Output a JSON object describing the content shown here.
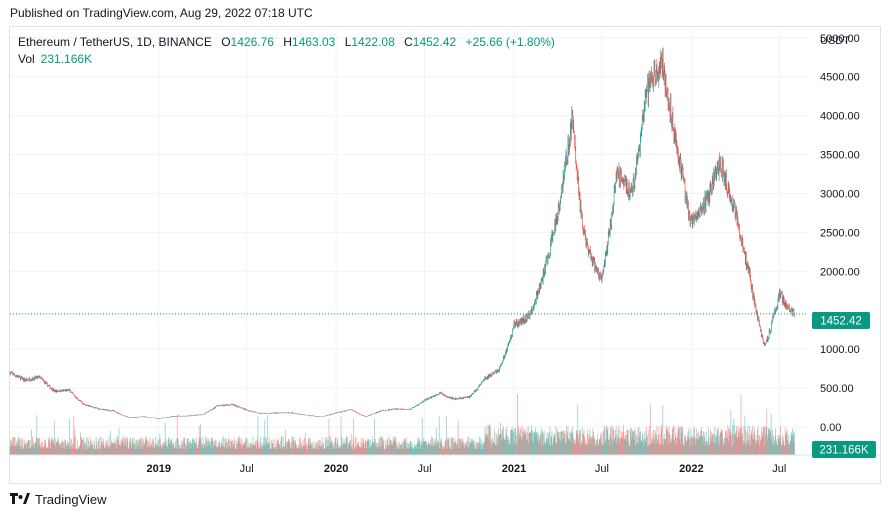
{
  "published": "Published on TradingView.com, Aug 29, 2022 07:18 UTC",
  "legend": {
    "symbol": "Ethereum / TetherUS, 1D, BINANCE",
    "o_label": "O",
    "o": "1426.76",
    "h_label": "H",
    "h": "1463.03",
    "l_label": "L",
    "l": "1422.08",
    "c_label": "C",
    "c": "1452.42",
    "change": "+25.66 (+1.80%)"
  },
  "volume": {
    "label": "Vol",
    "value": "231.166K"
  },
  "footer": {
    "brand": "TradingView"
  },
  "colors": {
    "up": "#26a69a",
    "down": "#ef5350",
    "last_price_bg": "#089981",
    "grid": "#f0f3fa",
    "text": "#131722"
  },
  "chart_data": {
    "type": "candlestick",
    "currency_label": "USDT",
    "y_ticks": [
      "5000.00",
      "4500.00",
      "4000.00",
      "3500.00",
      "3000.00",
      "2500.00",
      "2000.00",
      "1000.00",
      "500.00",
      "0.00"
    ],
    "y_tick_values": [
      5000,
      4500,
      4000,
      3500,
      3000,
      2500,
      2000,
      1000,
      500,
      0
    ],
    "ylim": [
      -360,
      5100
    ],
    "last_price": 1452.42,
    "last_price_label": "1452.42",
    "last_volume_label": "231.166K",
    "x_ticks": [
      "2019",
      "Jul",
      "2020",
      "Jul",
      "2021",
      "Jul",
      "2022",
      "Jul"
    ],
    "x_tick_dates": [
      "2019-01",
      "2019-07",
      "2020-01",
      "2020-07",
      "2021-01",
      "2021-07",
      "2022-01",
      "2022-07"
    ],
    "time_range": [
      "2018-03",
      "2022-08"
    ],
    "price_path": [
      {
        "date": "2018-03",
        "close": 700
      },
      {
        "date": "2018-04",
        "close": 600
      },
      {
        "date": "2018-05",
        "close": 640
      },
      {
        "date": "2018-06",
        "close": 460
      },
      {
        "date": "2018-07",
        "close": 470
      },
      {
        "date": "2018-08",
        "close": 290
      },
      {
        "date": "2018-09",
        "close": 230
      },
      {
        "date": "2018-10",
        "close": 205
      },
      {
        "date": "2018-11",
        "close": 120
      },
      {
        "date": "2018-12",
        "close": 130
      },
      {
        "date": "2019-01",
        "close": 107
      },
      {
        "date": "2019-02",
        "close": 137
      },
      {
        "date": "2019-03",
        "close": 141
      },
      {
        "date": "2019-04",
        "close": 160
      },
      {
        "date": "2019-05",
        "close": 270
      },
      {
        "date": "2019-06",
        "close": 290
      },
      {
        "date": "2019-07",
        "close": 218
      },
      {
        "date": "2019-08",
        "close": 172
      },
      {
        "date": "2019-09",
        "close": 180
      },
      {
        "date": "2019-10",
        "close": 182
      },
      {
        "date": "2019-11",
        "close": 152
      },
      {
        "date": "2019-12",
        "close": 130
      },
      {
        "date": "2020-01",
        "close": 180
      },
      {
        "date": "2020-02",
        "close": 226
      },
      {
        "date": "2020-03",
        "close": 133
      },
      {
        "date": "2020-04",
        "close": 206
      },
      {
        "date": "2020-05",
        "close": 230
      },
      {
        "date": "2020-06",
        "close": 225
      },
      {
        "date": "2020-07",
        "close": 345
      },
      {
        "date": "2020-08",
        "close": 434
      },
      {
        "date": "2020-09",
        "close": 360
      },
      {
        "date": "2020-10",
        "close": 386
      },
      {
        "date": "2020-11",
        "close": 615
      },
      {
        "date": "2020-12",
        "close": 737
      },
      {
        "date": "2021-01",
        "close": 1312
      },
      {
        "date": "2021-02",
        "close": 1420
      },
      {
        "date": "2021-03",
        "close": 1918
      },
      {
        "date": "2021-04",
        "close": 2773
      },
      {
        "date": "2021-05",
        "close": 4000
      },
      {
        "date": "2021-05-20",
        "close": 2700
      },
      {
        "date": "2021-06",
        "close": 2270
      },
      {
        "date": "2021-07",
        "close": 1900
      },
      {
        "date": "2021-08",
        "close": 3300
      },
      {
        "date": "2021-09",
        "close": 3000
      },
      {
        "date": "2021-10",
        "close": 4300
      },
      {
        "date": "2021-11",
        "close": 4700
      },
      {
        "date": "2021-12",
        "close": 3700
      },
      {
        "date": "2022-01",
        "close": 2600
      },
      {
        "date": "2022-02",
        "close": 2900
      },
      {
        "date": "2022-03",
        "close": 3400
      },
      {
        "date": "2022-04",
        "close": 2800
      },
      {
        "date": "2022-05",
        "close": 1950
      },
      {
        "date": "2022-06",
        "close": 1050
      },
      {
        "date": "2022-07",
        "close": 1700
      },
      {
        "date": "2022-08",
        "close": 1452
      }
    ]
  }
}
